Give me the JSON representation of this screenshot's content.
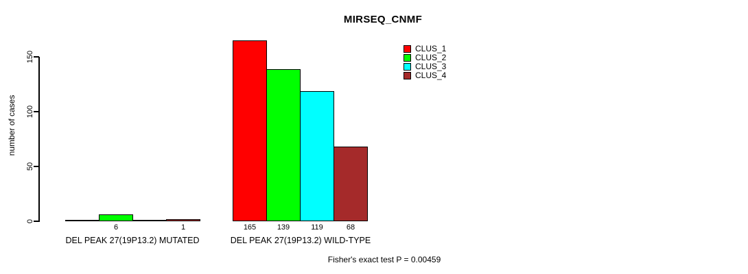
{
  "chart_data": {
    "type": "bar",
    "title": "MIRSEQ_CNMF",
    "xlabel": "",
    "ylabel": "number of cases",
    "yticks": [
      0,
      50,
      100,
      150
    ],
    "ylim": [
      0,
      170
    ],
    "grid": false,
    "categories": [
      "DEL PEAK 27(19P13.2) MUTATED",
      "DEL PEAK 27(19P13.2) WILD-TYPE"
    ],
    "series": [
      {
        "name": "CLUS_1",
        "color": "#FF0000",
        "values": [
          0,
          165
        ]
      },
      {
        "name": "CLUS_2",
        "color": "#00FF00",
        "values": [
          6,
          139
        ]
      },
      {
        "name": "CLUS_3",
        "color": "#00FFFF",
        "values": [
          0,
          119
        ]
      },
      {
        "name": "CLUS_4",
        "color": "#A52A2A",
        "values": [
          1,
          68
        ]
      }
    ],
    "bar_labels": [
      [
        "",
        "6",
        "",
        "1"
      ],
      [
        "165",
        "139",
        "119",
        "68"
      ]
    ],
    "legend_position": "inside-top-right",
    "annotation": "Fisher's exact test P = 0.00459"
  }
}
